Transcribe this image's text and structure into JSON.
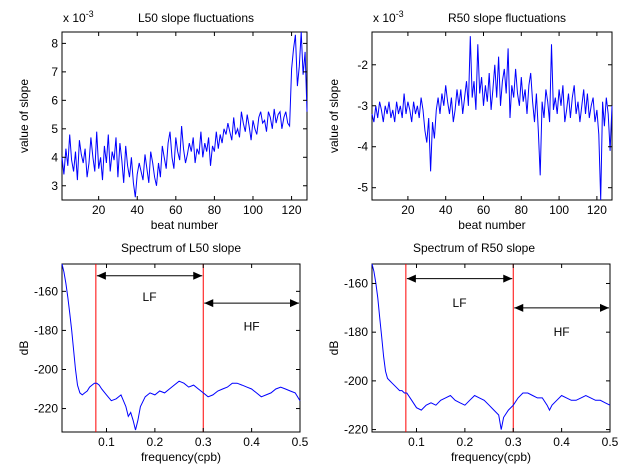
{
  "chart_data": [
    {
      "id": "tl",
      "type": "line",
      "title": "L50 slope fluctuations",
      "exponent_base": "x 10",
      "exponent_power": "-3",
      "xlabel": "beat number",
      "ylabel": "value of slope",
      "xlim": [
        1,
        128
      ],
      "ylim": [
        2.5,
        8.4
      ],
      "xticks": [
        20,
        40,
        60,
        80,
        100,
        120
      ],
      "yticks": [
        3,
        4,
        5,
        6,
        7,
        8
      ],
      "color": "#0000ff",
      "series": [
        {
          "x": [
            1,
            2,
            3,
            4,
            5,
            6,
            7,
            8,
            9,
            10,
            11,
            12,
            13,
            14,
            15,
            16,
            17,
            18,
            19,
            20,
            21,
            22,
            23,
            24,
            25,
            26,
            27,
            28,
            29,
            30,
            31,
            32,
            33,
            34,
            35,
            36,
            37,
            38,
            39,
            40,
            41,
            42,
            43,
            44,
            45,
            46,
            47,
            48,
            49,
            50,
            51,
            52,
            53,
            54,
            55,
            56,
            57,
            58,
            59,
            60,
            61,
            62,
            63,
            64,
            65,
            66,
            67,
            68,
            69,
            70,
            71,
            72,
            73,
            74,
            75,
            76,
            77,
            78,
            79,
            80,
            81,
            82,
            83,
            84,
            85,
            86,
            87,
            88,
            89,
            90,
            91,
            92,
            93,
            94,
            95,
            96,
            97,
            98,
            99,
            100,
            101,
            102,
            103,
            104,
            105,
            106,
            107,
            108,
            109,
            110,
            111,
            112,
            113,
            114,
            115,
            116,
            117,
            118,
            119,
            120,
            121,
            122,
            123,
            124,
            125,
            126,
            127,
            128
          ],
          "y": [
            4.0,
            3.4,
            4.3,
            3.7,
            4.8,
            3.9,
            3.5,
            4.2,
            3.2,
            4.6,
            4.1,
            3.8,
            4.3,
            3.3,
            3.8,
            4.7,
            4.0,
            3.5,
            4.9,
            3.6,
            4.0,
            3.2,
            4.4,
            3.8,
            4.8,
            3.5,
            4.2,
            3.9,
            4.7,
            3.3,
            4.5,
            3.9,
            3.1,
            4.4,
            3.7,
            3.3,
            4.0,
            3.1,
            2.6,
            3.4,
            3.8,
            3.5,
            3.2,
            4.1,
            3.6,
            3.1,
            4.2,
            3.8,
            3.3,
            3.0,
            3.8,
            3.3,
            4.4,
            4.0,
            3.6,
            4.5,
            4.9,
            4.0,
            3.6,
            4.7,
            4.2,
            3.9,
            5.1,
            4.3,
            3.8,
            4.1,
            4.5,
            4.2,
            4.7,
            3.8,
            4.3,
            4.1,
            4.9,
            4.0,
            4.5,
            4.2,
            4.7,
            3.7,
            4.4,
            4.2,
            4.9,
            4.3,
            4.8,
            4.5,
            5.0,
            4.8,
            5.2,
            4.9,
            4.6,
            5.4,
            4.8,
            5.0,
            4.7,
            5.6,
            5.2,
            4.9,
            5.5,
            5.1,
            4.6,
            5.3,
            5.0,
            4.8,
            5.4,
            5.6,
            5.2,
            5.3,
            4.9,
            5.6,
            5.4,
            5.0,
            5.7,
            5.2,
            5.5,
            5.6,
            5.0,
            5.4,
            5.6,
            5.2,
            5.1,
            7.1,
            7.8,
            8.3,
            6.5,
            7.2,
            8.4,
            6.9,
            7.7,
            5.6
          ]
        }
      ]
    },
    {
      "id": "tr",
      "type": "line",
      "title": "R50 slope fluctuations",
      "exponent_base": "x 10",
      "exponent_power": "-3",
      "xlabel": "beat number",
      "ylabel": "value of slope",
      "xlim": [
        1,
        128
      ],
      "ylim": [
        -5.3,
        -1.2
      ],
      "xticks": [
        20,
        40,
        60,
        80,
        100,
        120
      ],
      "yticks": [
        -5,
        -4,
        -3,
        -2
      ],
      "color": "#0000ff",
      "series": [
        {
          "x": [
            1,
            2,
            3,
            4,
            5,
            6,
            7,
            8,
            9,
            10,
            11,
            12,
            13,
            14,
            15,
            16,
            17,
            18,
            19,
            20,
            21,
            22,
            23,
            24,
            25,
            26,
            27,
            28,
            29,
            30,
            31,
            32,
            33,
            34,
            35,
            36,
            37,
            38,
            39,
            40,
            41,
            42,
            43,
            44,
            45,
            46,
            47,
            48,
            49,
            50,
            51,
            52,
            53,
            54,
            55,
            56,
            57,
            58,
            59,
            60,
            61,
            62,
            63,
            64,
            65,
            66,
            67,
            68,
            69,
            70,
            71,
            72,
            73,
            74,
            75,
            76,
            77,
            78,
            79,
            80,
            81,
            82,
            83,
            84,
            85,
            86,
            87,
            88,
            89,
            90,
            91,
            92,
            93,
            94,
            95,
            96,
            97,
            98,
            99,
            100,
            101,
            102,
            103,
            104,
            105,
            106,
            107,
            108,
            109,
            110,
            111,
            112,
            113,
            114,
            115,
            116,
            117,
            118,
            119,
            120,
            121,
            122,
            123,
            124,
            125,
            126,
            127,
            128
          ],
          "y": [
            -3.2,
            -3.4,
            -3.0,
            -3.3,
            -2.9,
            -3.1,
            -3.4,
            -3.0,
            -3.2,
            -2.9,
            -3.3,
            -3.1,
            -3.4,
            -2.9,
            -3.2,
            -3.0,
            -3.3,
            -2.7,
            -3.2,
            -2.9,
            -3.1,
            -3.4,
            -2.9,
            -3.2,
            -3.0,
            -3.3,
            -2.8,
            -3.1,
            -3.6,
            -3.9,
            -3.3,
            -4.6,
            -3.4,
            -3.8,
            -3.1,
            -2.8,
            -3.2,
            -2.7,
            -3.0,
            -2.5,
            -2.9,
            -3.2,
            -2.8,
            -3.4,
            -3.1,
            -2.6,
            -3.0,
            -2.6,
            -3.2,
            -2.8,
            -2.4,
            -3.0,
            -1.3,
            -2.8,
            -2.4,
            -3.1,
            -1.5,
            -2.7,
            -2.3,
            -3.0,
            -2.5,
            -2.9,
            -2.2,
            -3.1,
            -2.6,
            -2.0,
            -2.8,
            -1.8,
            -3.0,
            -2.4,
            -2.1,
            -2.7,
            -1.6,
            -3.3,
            -2.5,
            -2.8,
            -2.1,
            -2.7,
            -3.0,
            -2.3,
            -2.9,
            -2.6,
            -3.2,
            -2.5,
            -2.2,
            -2.9,
            -3.4,
            -2.7,
            -3.6,
            -4.7,
            -2.9,
            -3.3,
            -2.6,
            -2.9,
            -3.4,
            -1.5,
            -3.1,
            -2.8,
            -3.2,
            -2.6,
            -3.0,
            -2.5,
            -3.4,
            -3.1,
            -2.7,
            -3.3,
            -2.8,
            -2.5,
            -3.2,
            -2.9,
            -3.4,
            -3.0,
            -2.6,
            -3.2,
            -2.7,
            -3.3,
            -3.0,
            -2.8,
            -3.4,
            -3.1,
            -3.7,
            -5.3,
            -2.9,
            -3.5,
            -2.8,
            -3.2,
            -4.1,
            -3.0
          ]
        }
      ]
    },
    {
      "id": "bl",
      "type": "line",
      "title": "Spectrum of L50 slope",
      "xlabel": "frequency(cpb)",
      "ylabel": "dB",
      "xlim": [
        0.008,
        0.5
      ],
      "ylim": [
        -232,
        -146
      ],
      "xticks": [
        0.1,
        0.2,
        0.3,
        0.4,
        0.5
      ],
      "yticks": [
        -220,
        -200,
        -180,
        -160
      ],
      "color": "#0000ff",
      "band_lines": [
        0.078,
        0.3
      ],
      "band_line_color": "#ff0000",
      "bands": [
        {
          "label": "LF",
          "from": 0.078,
          "to": 0.3,
          "arrow_db": -152,
          "label_db": -163
        },
        {
          "label": "HF",
          "from": 0.3,
          "to": 0.5,
          "arrow_db": -166,
          "label_db": -178
        }
      ],
      "series": [
        {
          "x": [
            0.008,
            0.012,
            0.016,
            0.02,
            0.024,
            0.028,
            0.032,
            0.036,
            0.04,
            0.045,
            0.05,
            0.055,
            0.06,
            0.065,
            0.07,
            0.075,
            0.08,
            0.085,
            0.09,
            0.1,
            0.11,
            0.12,
            0.13,
            0.14,
            0.145,
            0.15,
            0.155,
            0.16,
            0.165,
            0.17,
            0.18,
            0.19,
            0.2,
            0.21,
            0.22,
            0.23,
            0.24,
            0.25,
            0.26,
            0.27,
            0.28,
            0.29,
            0.3,
            0.31,
            0.32,
            0.33,
            0.34,
            0.35,
            0.36,
            0.37,
            0.38,
            0.39,
            0.4,
            0.41,
            0.42,
            0.43,
            0.44,
            0.45,
            0.46,
            0.47,
            0.48,
            0.49,
            0.5
          ],
          "y": [
            -146,
            -150,
            -156,
            -163,
            -171,
            -180,
            -190,
            -200,
            -208,
            -212,
            -213,
            -212,
            -211,
            -209,
            -208,
            -207,
            -207,
            -208,
            -210,
            -213,
            -216,
            -215,
            -213,
            -219,
            -224,
            -222,
            -226,
            -231,
            -226,
            -219,
            -214,
            -212,
            -213,
            -211,
            -212,
            -210,
            -208,
            -206,
            -207,
            -209,
            -208,
            -210,
            -212,
            -214,
            -213,
            -211,
            -210,
            -209,
            -207,
            -207,
            -208,
            -209,
            -210,
            -212,
            -214,
            -213,
            -212,
            -210,
            -209,
            -210,
            -211,
            -212,
            -216
          ]
        }
      ]
    },
    {
      "id": "br",
      "type": "line",
      "title": "Spectrum of R50 slope",
      "xlabel": "frequency(cpb)",
      "ylabel": "dB",
      "xlim": [
        0.008,
        0.5
      ],
      "ylim": [
        -221,
        -152
      ],
      "xticks": [
        0.1,
        0.2,
        0.3,
        0.4,
        0.5
      ],
      "yticks": [
        -220,
        -200,
        -180,
        -160
      ],
      "color": "#0000ff",
      "band_lines": [
        0.078,
        0.3
      ],
      "band_line_color": "#ff0000",
      "bands": [
        {
          "label": "LF",
          "from": 0.078,
          "to": 0.3,
          "arrow_db": -158,
          "label_db": -168
        },
        {
          "label": "HF",
          "from": 0.3,
          "to": 0.5,
          "arrow_db": -170,
          "label_db": -180
        }
      ],
      "series": [
        {
          "x": [
            0.008,
            0.012,
            0.016,
            0.02,
            0.024,
            0.028,
            0.032,
            0.036,
            0.04,
            0.045,
            0.05,
            0.055,
            0.06,
            0.065,
            0.07,
            0.075,
            0.08,
            0.09,
            0.1,
            0.11,
            0.12,
            0.13,
            0.14,
            0.15,
            0.16,
            0.17,
            0.18,
            0.19,
            0.2,
            0.21,
            0.22,
            0.23,
            0.24,
            0.25,
            0.26,
            0.27,
            0.275,
            0.28,
            0.29,
            0.3,
            0.31,
            0.32,
            0.33,
            0.34,
            0.35,
            0.36,
            0.37,
            0.375,
            0.38,
            0.39,
            0.4,
            0.41,
            0.42,
            0.43,
            0.44,
            0.45,
            0.46,
            0.47,
            0.48,
            0.49,
            0.5
          ],
          "y": [
            -152,
            -155,
            -160,
            -166,
            -174,
            -182,
            -190,
            -196,
            -199,
            -200,
            -201,
            -202,
            -203,
            -204,
            -204,
            -205,
            -205,
            -208,
            -211,
            -212,
            -210,
            -209,
            -210,
            -208,
            -207,
            -206,
            -208,
            -209,
            -210,
            -208,
            -206,
            -207,
            -208,
            -210,
            -212,
            -214,
            -220,
            -215,
            -212,
            -210,
            -207,
            -205,
            -205,
            -206,
            -207,
            -207,
            -210,
            -212,
            -210,
            -208,
            -206,
            -207,
            -208,
            -208,
            -207,
            -206,
            -207,
            -208,
            -208,
            -209,
            -210
          ]
        }
      ]
    }
  ]
}
